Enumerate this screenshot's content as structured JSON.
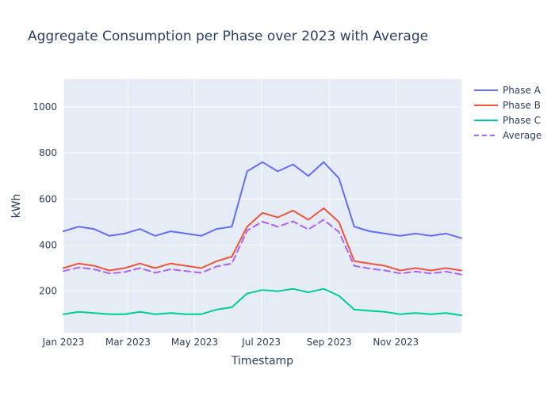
{
  "chart_data": {
    "type": "line",
    "title": "Aggregate Consumption per Phase over 2023 with Average",
    "xlabel": "Timestamp",
    "ylabel": "kWh",
    "x_range": [
      "2023-01-01",
      "2023-12-31"
    ],
    "x_ticks": [
      {
        "date": "2023-01-01",
        "label": "Jan 2023"
      },
      {
        "date": "2023-03-01",
        "label": "Mar 2023"
      },
      {
        "date": "2023-05-01",
        "label": "May 2023"
      },
      {
        "date": "2023-07-01",
        "label": "Jul 2023"
      },
      {
        "date": "2023-09-01",
        "label": "Sep 2023"
      },
      {
        "date": "2023-11-01",
        "label": "Nov 2023"
      }
    ],
    "ylim": [
      20,
      1120
    ],
    "y_ticks": [
      200,
      400,
      600,
      800,
      1000
    ],
    "grid": true,
    "legend_position": "top-right",
    "series": [
      {
        "name": "Phase A",
        "color": "#636efa",
        "dash": "solid",
        "x": [
          "2023-01-01",
          "2023-01-15",
          "2023-01-29",
          "2023-02-12",
          "2023-02-26",
          "2023-03-12",
          "2023-03-26",
          "2023-04-09",
          "2023-04-23",
          "2023-05-07",
          "2023-05-21",
          "2023-06-04",
          "2023-06-18",
          "2023-07-02",
          "2023-07-16",
          "2023-07-30",
          "2023-08-13",
          "2023-08-27",
          "2023-09-10",
          "2023-09-24",
          "2023-10-08",
          "2023-10-22",
          "2023-11-05",
          "2023-11-19",
          "2023-12-03",
          "2023-12-17",
          "2023-12-31"
        ],
        "values": [
          460,
          480,
          470,
          440,
          450,
          470,
          440,
          460,
          450,
          440,
          470,
          480,
          720,
          760,
          720,
          750,
          700,
          760,
          690,
          480,
          460,
          450,
          440,
          450,
          440,
          450,
          430
        ]
      },
      {
        "name": "Phase B",
        "color": "#ef553b",
        "dash": "solid",
        "x": [
          "2023-01-01",
          "2023-01-15",
          "2023-01-29",
          "2023-02-12",
          "2023-02-26",
          "2023-03-12",
          "2023-03-26",
          "2023-04-09",
          "2023-04-23",
          "2023-05-07",
          "2023-05-21",
          "2023-06-04",
          "2023-06-18",
          "2023-07-02",
          "2023-07-16",
          "2023-07-30",
          "2023-08-13",
          "2023-08-27",
          "2023-09-10",
          "2023-09-24",
          "2023-10-08",
          "2023-10-22",
          "2023-11-05",
          "2023-11-19",
          "2023-12-03",
          "2023-12-17",
          "2023-12-31"
        ],
        "values": [
          300,
          320,
          310,
          290,
          300,
          320,
          300,
          320,
          310,
          300,
          330,
          350,
          480,
          540,
          520,
          550,
          510,
          560,
          500,
          330,
          320,
          310,
          290,
          300,
          290,
          300,
          290
        ]
      },
      {
        "name": "Phase C",
        "color": "#00cc96",
        "dash": "solid",
        "x": [
          "2023-01-01",
          "2023-01-15",
          "2023-01-29",
          "2023-02-12",
          "2023-02-26",
          "2023-03-12",
          "2023-03-26",
          "2023-04-09",
          "2023-04-23",
          "2023-05-07",
          "2023-05-21",
          "2023-06-04",
          "2023-06-18",
          "2023-07-02",
          "2023-07-16",
          "2023-07-30",
          "2023-08-13",
          "2023-08-27",
          "2023-09-10",
          "2023-09-24",
          "2023-10-08",
          "2023-10-22",
          "2023-11-05",
          "2023-11-19",
          "2023-12-03",
          "2023-12-17",
          "2023-12-31"
        ],
        "values": [
          100,
          110,
          105,
          100,
          100,
          110,
          100,
          105,
          100,
          100,
          120,
          130,
          190,
          205,
          200,
          210,
          195,
          210,
          180,
          120,
          115,
          110,
          100,
          105,
          100,
          105,
          95
        ]
      },
      {
        "name": "Average",
        "color": "#ab63fa",
        "dash": "dash",
        "x": [
          "2023-01-01",
          "2023-01-15",
          "2023-01-29",
          "2023-02-12",
          "2023-02-26",
          "2023-03-12",
          "2023-03-26",
          "2023-04-09",
          "2023-04-23",
          "2023-05-07",
          "2023-05-21",
          "2023-06-04",
          "2023-06-18",
          "2023-07-02",
          "2023-07-16",
          "2023-07-30",
          "2023-08-13",
          "2023-08-27",
          "2023-09-10",
          "2023-09-24",
          "2023-10-08",
          "2023-10-22",
          "2023-11-05",
          "2023-11-19",
          "2023-12-03",
          "2023-12-17",
          "2023-12-31"
        ],
        "values": [
          287,
          303,
          295,
          277,
          283,
          300,
          280,
          295,
          287,
          280,
          307,
          320,
          463,
          502,
          480,
          503,
          468,
          510,
          457,
          310,
          298,
          290,
          277,
          285,
          277,
          285,
          272
        ]
      }
    ]
  }
}
